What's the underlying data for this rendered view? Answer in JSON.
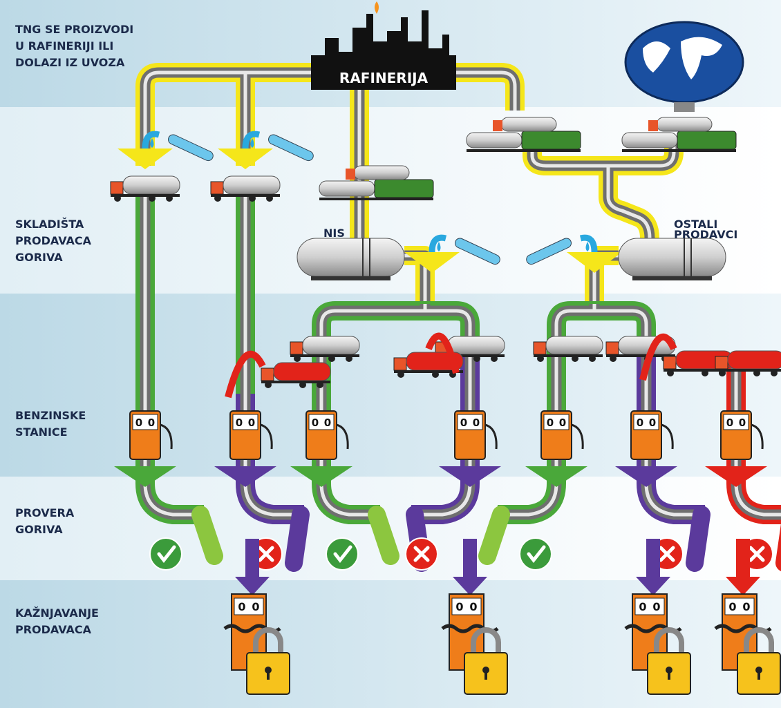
{
  "sections": [
    {
      "lines": [
        "TNG SE PROIZVODI",
        "U RAFINERIJI ILI",
        "DOLAZI IZ UVOZA"
      ]
    },
    {
      "lines": [
        "SKLADIŠTA",
        "PRODAVACA",
        "GORIVA"
      ]
    },
    {
      "lines": [
        "BENZINSKE",
        "STANICE"
      ]
    },
    {
      "lines": [
        "PROVERA",
        "GORIVA"
      ]
    },
    {
      "lines": [
        "KAŽNJAVANJE",
        "PRODAVACA"
      ]
    }
  ],
  "nodes": {
    "refinery": "RAFINERIJA",
    "nis": "NIS",
    "others": [
      "OSTALI",
      "PRODAVCI"
    ]
  },
  "pump_display": [
    "0",
    "0"
  ]
}
